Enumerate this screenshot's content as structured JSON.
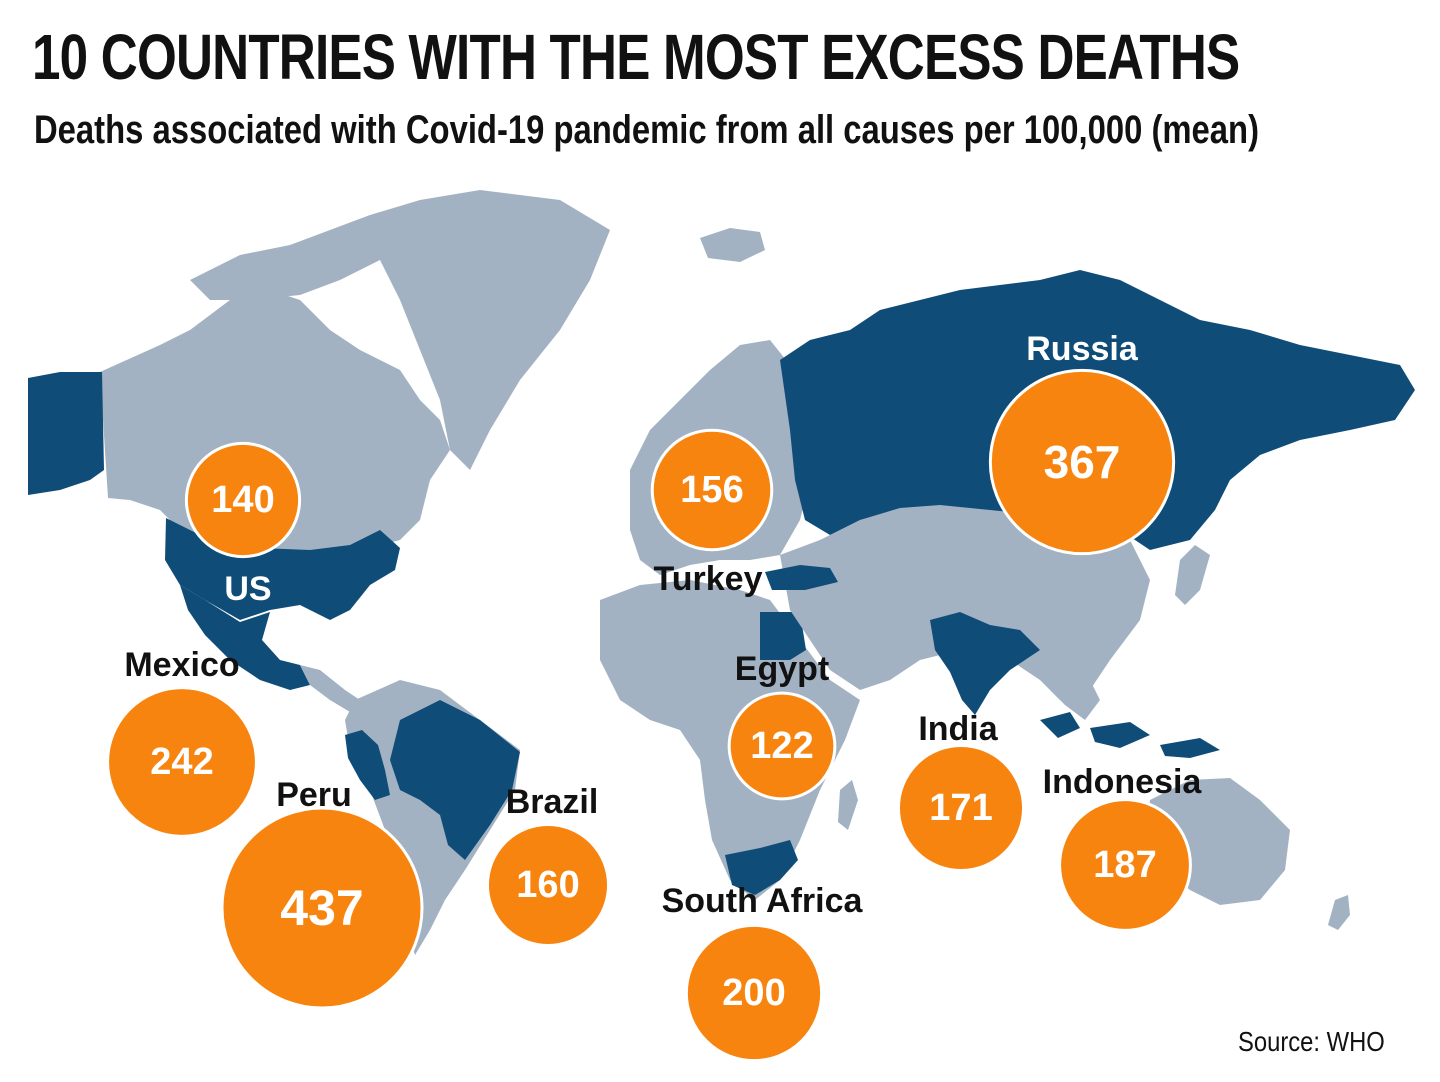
{
  "title": "10 COUNTRIES WITH THE MOST EXCESS DEATHS",
  "subtitle": "Deaths associated with Covid-19 pandemic from all causes per 100,000 (mean)",
  "source": "Source: WHO",
  "colors": {
    "land": "#a2b2c2",
    "highlight": "#0f4c78",
    "bubble": "#f88410",
    "background": "#ffffff"
  },
  "countries": [
    {
      "name": "US",
      "value": 140
    },
    {
      "name": "Mexico",
      "value": 242
    },
    {
      "name": "Peru",
      "value": 437
    },
    {
      "name": "Brazil",
      "value": 160
    },
    {
      "name": "Turkey",
      "value": 156
    },
    {
      "name": "Egypt",
      "value": 122
    },
    {
      "name": "South Africa",
      "value": 200
    },
    {
      "name": "Russia",
      "value": 367
    },
    {
      "name": "India",
      "value": 171
    },
    {
      "name": "Indonesia",
      "value": 187
    }
  ]
}
